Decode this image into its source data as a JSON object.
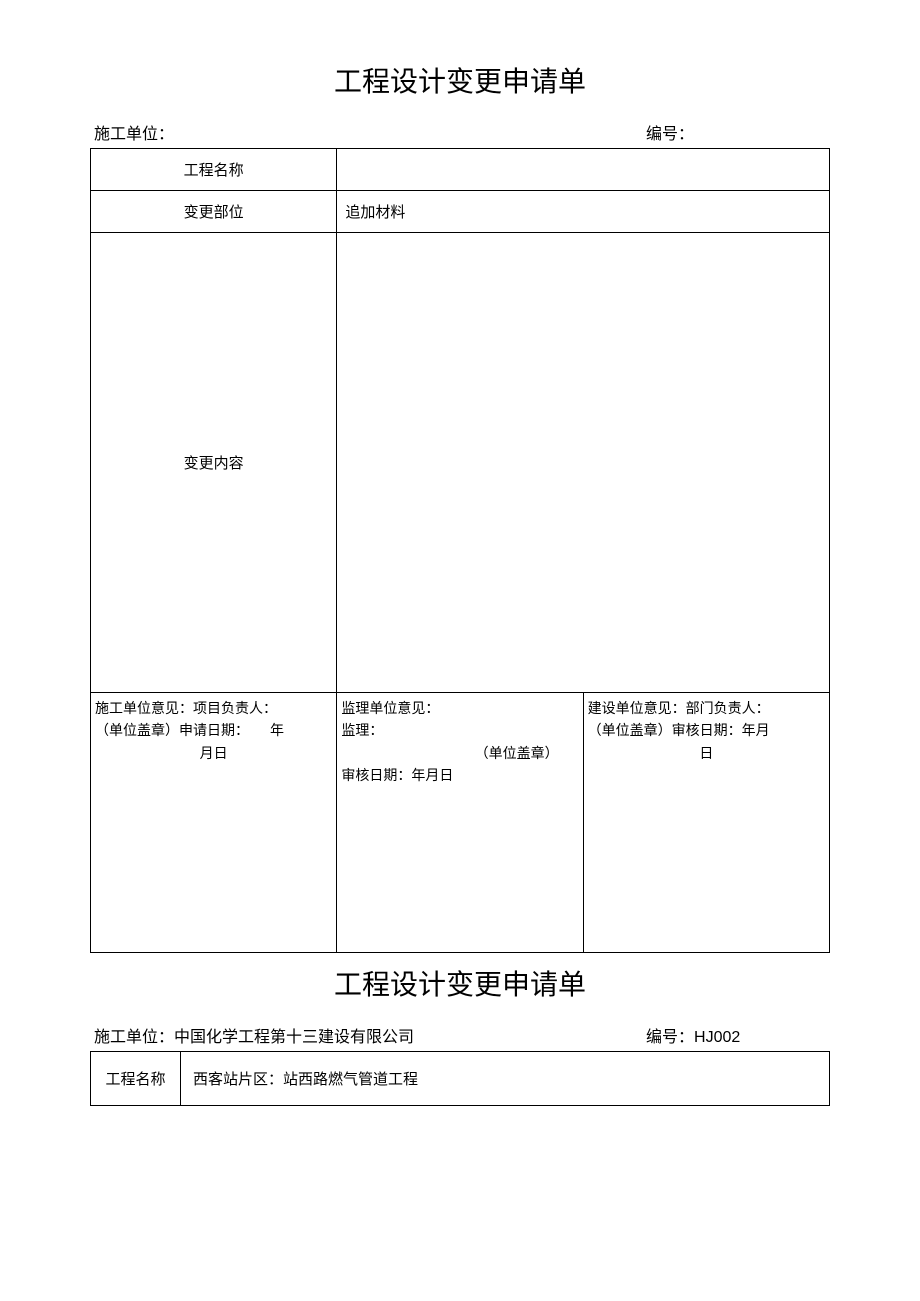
{
  "form1": {
    "title": "工程设计变更申请单",
    "header": {
      "construction_unit_label": "施工单位：",
      "construction_unit_value": "",
      "serial_label": "编号：",
      "serial_value": ""
    },
    "rows": {
      "project_name_label": "工程名称",
      "project_name_value": "",
      "change_part_label": "变更部位",
      "change_part_value": "追加材料",
      "change_content_label": "变更内容",
      "change_content_value": ""
    },
    "opinions": {
      "construction": {
        "line1": "施工单位意见：项目负责人：",
        "line2_prefix": "（单位盖章）申请日期：",
        "line2_suffix": "年",
        "line3": "月日"
      },
      "supervision": {
        "line1": "监理单位意见：",
        "line2": "监理：",
        "seal": "（单位盖章）",
        "date": "审核日期：年月日"
      },
      "owner": {
        "line1": "建设单位意见：部门负责人：",
        "line2": "（单位盖章）审核日期：年月",
        "line3": "日"
      }
    }
  },
  "form2": {
    "title": "工程设计变更申请单",
    "header": {
      "construction_unit_label": "施工单位：",
      "construction_unit_value": "中国化学工程第十三建设有限公司",
      "serial_label": "编号：",
      "serial_value": "HJ002"
    },
    "rows": {
      "project_name_label": "工程名称",
      "project_name_value": "西客站片区：站西路燃气管道工程"
    }
  },
  "colors": {
    "text": "#000000",
    "background": "#ffffff",
    "border": "#000000"
  }
}
